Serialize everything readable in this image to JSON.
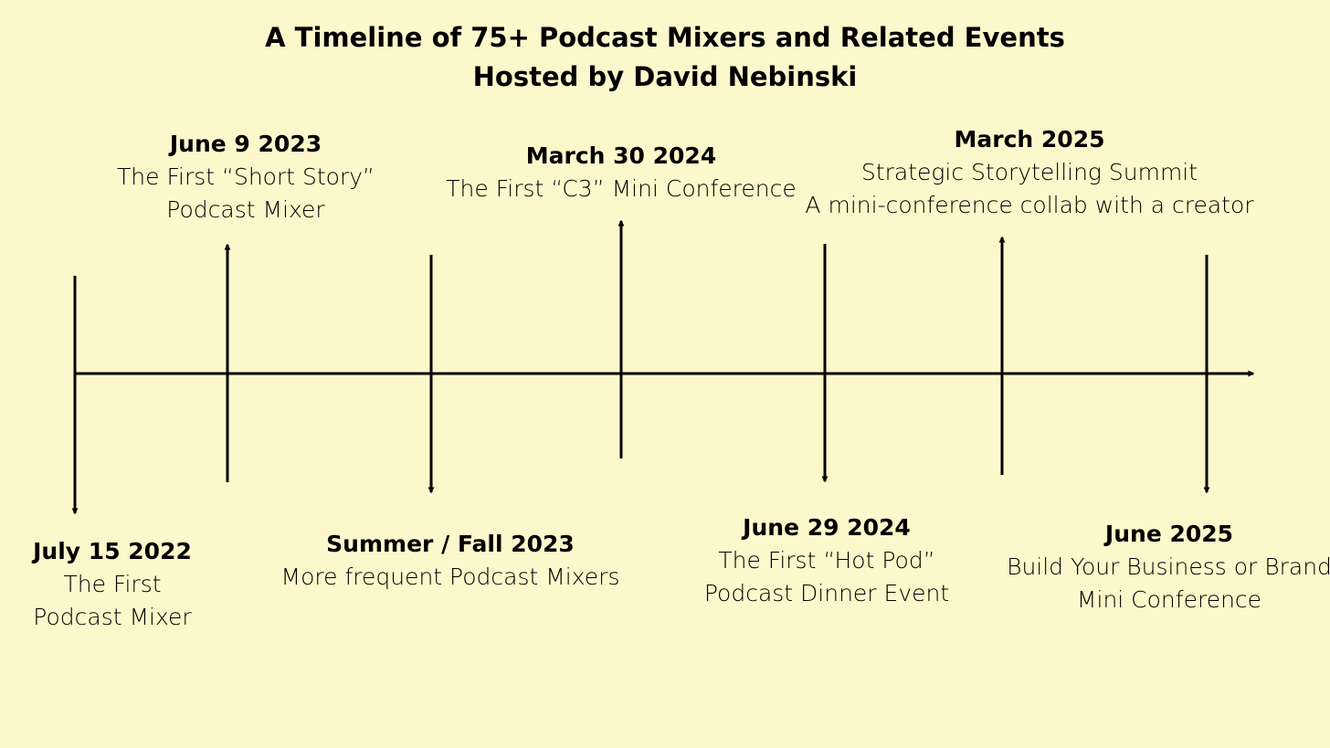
{
  "title": {
    "line1": "A Timeline of 75+ Podcast Mixers and Related Events",
    "line2": "Hosted by David Nebinski"
  },
  "colors": {
    "background": "#fdf8cb",
    "ink": "#000000"
  },
  "events": [
    {
      "date": "July 15 2022",
      "lines": [
        "The First",
        "Podcast Mixer"
      ],
      "direction": "down"
    },
    {
      "date": "June 9 2023",
      "lines": [
        "The First “Short Story”",
        "Podcast Mixer"
      ],
      "direction": "up"
    },
    {
      "date": "Summer / Fall 2023",
      "lines": [
        "More frequent Podcast Mixers"
      ],
      "direction": "down"
    },
    {
      "date": "March 30 2024",
      "lines": [
        "The First “C3” Mini Conference"
      ],
      "direction": "up"
    },
    {
      "date": "June 29 2024",
      "lines": [
        "The First “Hot Pod”",
        "Podcast Dinner Event"
      ],
      "direction": "down"
    },
    {
      "date": "March 2025",
      "lines": [
        "Strategic Storytelling Summit",
        "A mini-conference collab with a creator"
      ],
      "direction": "up"
    },
    {
      "date": "June 2025",
      "lines": [
        "Build Your Business or Brand",
        "Mini Conference"
      ],
      "direction": "down"
    }
  ]
}
